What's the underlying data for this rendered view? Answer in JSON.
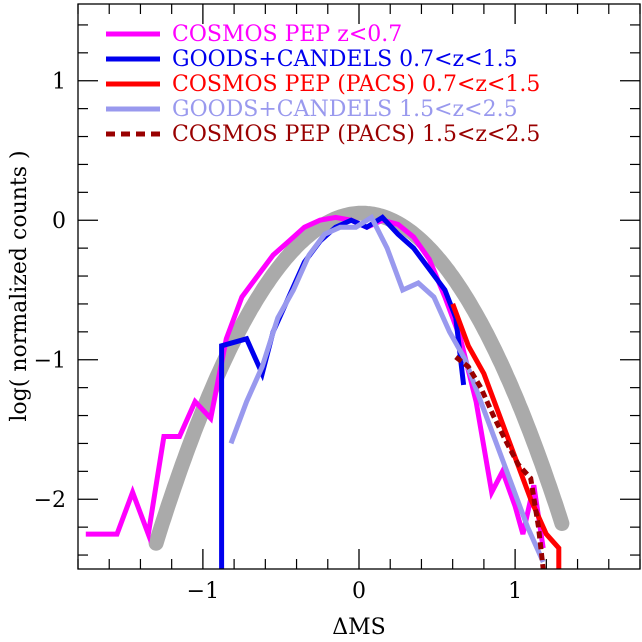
{
  "chart_data": {
    "type": "line",
    "title": "",
    "xlabel": "ΔMS",
    "ylabel": "log( normalized counts )",
    "xlim": [
      -1.8,
      1.8
    ],
    "ylim": [
      -2.5,
      1.55
    ],
    "x_major_ticks": [
      -1,
      0,
      1
    ],
    "x_tick_labels": [
      "−1",
      "0",
      "1"
    ],
    "y_major_ticks": [
      -2,
      -1,
      0,
      1
    ],
    "y_tick_labels": [
      "−2",
      "−1",
      "0",
      "1"
    ],
    "grid": false,
    "legend_position": "top-left",
    "series": [
      {
        "name": "COSMOS PEP z<0.7",
        "color": "#ff00ff",
        "style": "solid",
        "x": [
          -1.75,
          -1.7,
          -1.55,
          -1.45,
          -1.35,
          -1.25,
          -1.15,
          -1.05,
          -0.95,
          -0.85,
          -0.75,
          -0.65,
          -0.55,
          -0.45,
          -0.35,
          -0.25,
          -0.15,
          -0.05,
          0.05,
          0.15,
          0.25,
          0.35,
          0.45,
          0.55,
          0.65,
          0.75,
          0.85,
          0.92,
          1.0,
          1.05,
          1.12,
          1.18
        ],
        "y": [
          -2.25,
          -2.25,
          -2.25,
          -1.95,
          -2.25,
          -1.55,
          -1.55,
          -1.3,
          -1.42,
          -0.85,
          -0.55,
          -0.4,
          -0.25,
          -0.15,
          -0.05,
          0.0,
          0.02,
          0.0,
          -0.05,
          0.0,
          -0.03,
          -0.12,
          -0.28,
          -0.55,
          -0.85,
          -1.3,
          -1.95,
          -1.8,
          -2.05,
          -2.25,
          -1.9,
          -2.35
        ]
      },
      {
        "name": "GOODS+CANDELS 0.7<z<1.5",
        "color": "#0000ee",
        "style": "solid",
        "x": [
          -0.88,
          -0.88,
          -0.72,
          -0.62,
          -0.55,
          -0.45,
          -0.35,
          -0.25,
          -0.15,
          -0.05,
          0.05,
          0.15,
          0.25,
          0.35,
          0.45,
          0.55,
          0.62,
          0.67
        ],
        "y": [
          -2.55,
          -0.9,
          -0.85,
          -1.1,
          -0.8,
          -0.55,
          -0.3,
          -0.15,
          -0.05,
          0.0,
          -0.05,
          0.02,
          -0.1,
          -0.2,
          -0.35,
          -0.5,
          -0.7,
          -1.18
        ]
      },
      {
        "name": "COSMOS PEP (PACS) 0.7<z<1.5",
        "color": "#ff0000",
        "style": "solid",
        "x": [
          0.6,
          0.7,
          0.8,
          0.9,
          1.0,
          1.1,
          1.2,
          1.28,
          1.28
        ],
        "y": [
          -0.6,
          -0.9,
          -1.1,
          -1.4,
          -1.7,
          -2.0,
          -2.25,
          -2.35,
          -2.6
        ]
      },
      {
        "name": "GOODS+CANDELS 1.5<z<2.5",
        "color": "#9999ee",
        "style": "solid",
        "x": [
          -0.82,
          -0.72,
          -0.62,
          -0.52,
          -0.42,
          -0.32,
          -0.22,
          -0.12,
          -0.02,
          0.08,
          0.18,
          0.28,
          0.38,
          0.48,
          0.58,
          0.68,
          0.78,
          0.88,
          0.98,
          1.08,
          1.18
        ],
        "y": [
          -1.6,
          -1.3,
          -1.05,
          -0.7,
          -0.5,
          -0.25,
          -0.1,
          -0.05,
          -0.05,
          0.02,
          -0.2,
          -0.5,
          -0.45,
          -0.55,
          -0.8,
          -1.0,
          -1.3,
          -1.6,
          -1.9,
          -2.2,
          -2.45
        ]
      },
      {
        "name": "COSMOS PEP (PACS) 1.5<z<2.5",
        "color": "#990000",
        "style": "dotted",
        "x": [
          0.62,
          0.7,
          0.78,
          0.86,
          0.94,
          1.02,
          1.1,
          1.15,
          1.18
        ],
        "y": [
          -0.98,
          -1.05,
          -1.2,
          -1.4,
          -1.58,
          -1.75,
          -1.85,
          -2.2,
          -2.5
        ]
      },
      {
        "color": "#aaaaaa",
        "style": "fit",
        "function": "gaussian",
        "mu": 0.02,
        "sigma": 0.4,
        "peak": 0.05
      }
    ]
  }
}
